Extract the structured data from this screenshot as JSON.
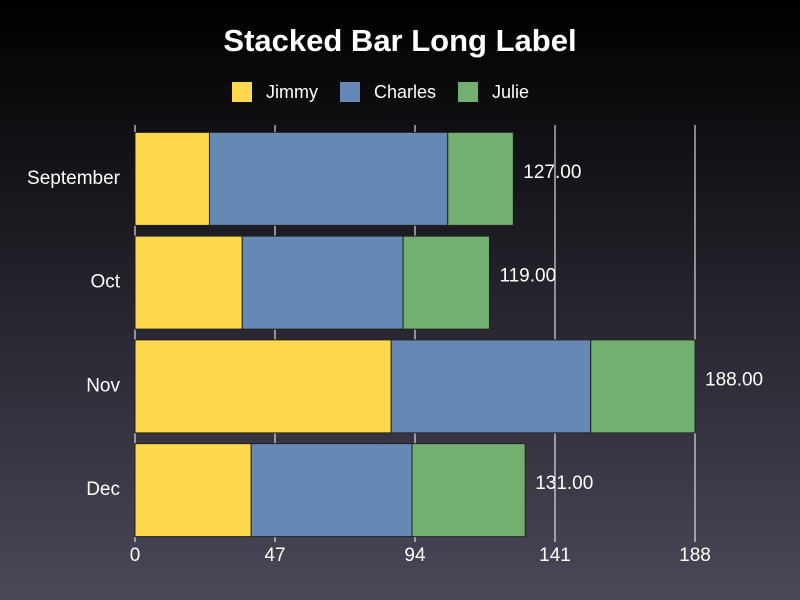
{
  "chart_data": {
    "type": "stacked-bar",
    "orientation": "horizontal",
    "title": "Stacked Bar Long Label",
    "categories": [
      "September",
      "Oct",
      "Nov",
      "Dec"
    ],
    "series": [
      {
        "name": "Jimmy",
        "color": "#ffd84d",
        "values": [
          25,
          36,
          86,
          39
        ]
      },
      {
        "name": "Charles",
        "color": "#6688b4",
        "values": [
          80,
          54,
          67,
          54
        ]
      },
      {
        "name": "Julie",
        "color": "#72b070",
        "values": [
          22,
          29,
          35,
          38
        ]
      }
    ],
    "totals": [
      127,
      119,
      188,
      131
    ],
    "total_labels": [
      "127.00",
      "119.00",
      "188.00",
      "131.00"
    ],
    "xlim": [
      0,
      188
    ],
    "xticks": [
      0,
      47,
      94,
      141,
      188
    ],
    "grid": true,
    "legend": "top"
  }
}
